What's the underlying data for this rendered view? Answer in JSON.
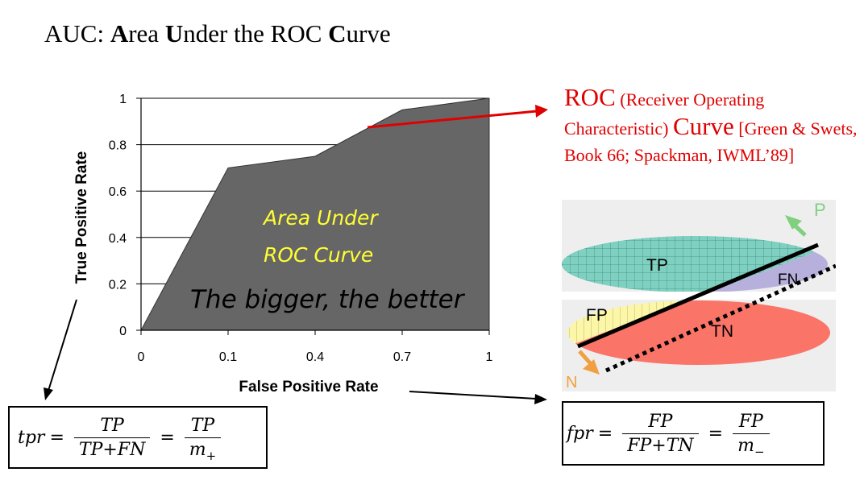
{
  "title": {
    "parts": [
      {
        "t": "AUC: ",
        "b": false
      },
      {
        "t": "A",
        "b": true
      },
      {
        "t": "rea ",
        "b": false
      },
      {
        "t": "U",
        "b": true
      },
      {
        "t": "nder the ROC ",
        "b": false
      },
      {
        "t": "C",
        "b": true
      },
      {
        "t": "urve",
        "b": false
      }
    ]
  },
  "chart_data": {
    "type": "area",
    "x": [
      0,
      0.1,
      0.4,
      0.7,
      1
    ],
    "y": [
      0,
      0.7,
      0.75,
      0.95,
      1
    ],
    "x_tick_labels": [
      "0",
      "0.1",
      "0.4",
      "0.7",
      "1"
    ],
    "y_tick_labels": [
      "0",
      "0.2",
      "0.4",
      "0.6",
      "0.8",
      "1"
    ],
    "xlabel": "False Positive Rate",
    "ylabel": "True Positive Rate",
    "ylim": [
      0,
      1
    ],
    "fill_color": "#666666",
    "annotations": [
      "Area Under",
      "ROC Curve",
      "The bigger, the better"
    ]
  },
  "roc_desc": {
    "roc": "ROC",
    "receiver": " (Receiver Operating Characteristic) ",
    "curve": "Curve",
    "refs": " [Green & Swets, Book 66; Spackman, IWML’89]"
  },
  "diagram": {
    "tp": "TP",
    "fn": "FN",
    "fp": "FP",
    "tn": "TN",
    "p": "P",
    "n": "N",
    "colors": {
      "tp": "#7fd0c0",
      "fn": "#b8b0dc",
      "fp": "#fcf6a8",
      "tn": "#fa7468",
      "p": "#80d080",
      "n": "#f0a040",
      "bg": "#eeeeee"
    }
  },
  "tpr": {
    "lhs": "tpr",
    "num1": "TP",
    "den1": "TP+FN",
    "num2": "TP",
    "den2_base": "m",
    "den2_sub": "+"
  },
  "fpr": {
    "lhs": "fpr",
    "num1": "FP",
    "den1": "FP+TN",
    "num2": "FP",
    "den2_base": "m",
    "den2_sub": "−"
  },
  "colors": {
    "arrow_red": "#e00000",
    "text_red": "#e00000"
  }
}
